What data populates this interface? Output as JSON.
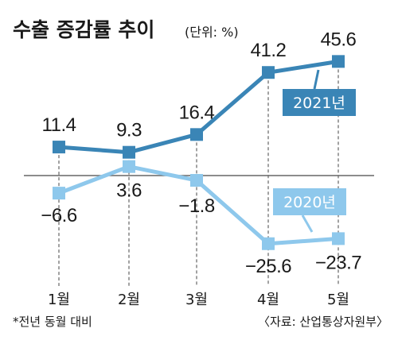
{
  "title": "수출 증감률 추이",
  "unit_note": "(단위: %)",
  "footnote": "*전년 동월 대비",
  "source": "〈자료: 산업통상자원부〉",
  "colors": {
    "series_2021": "#3a85b6",
    "series_2020": "#8ec8ec",
    "baseline": "#666666",
    "dashed_guides": "#444444"
  },
  "chart_data": {
    "type": "line",
    "categories": [
      "1월",
      "2월",
      "3월",
      "4월",
      "5월"
    ],
    "series": [
      {
        "name": "2021년",
        "values": [
          11.4,
          9.3,
          16.4,
          41.2,
          45.6
        ],
        "labels": [
          "11.4",
          "9.3",
          "16.4",
          "41.2",
          "45.6"
        ],
        "color": "#3a85b6"
      },
      {
        "name": "2020년",
        "values": [
          -6.6,
          3.6,
          -1.8,
          -25.6,
          -23.7
        ],
        "labels": [
          "−6.6",
          "3.6",
          "−1.8",
          "−25.6",
          "−23.7"
        ],
        "color": "#8ec8ec"
      }
    ],
    "zero_line": true,
    "markers": "square",
    "grid": false,
    "legend": "inline-callout"
  }
}
